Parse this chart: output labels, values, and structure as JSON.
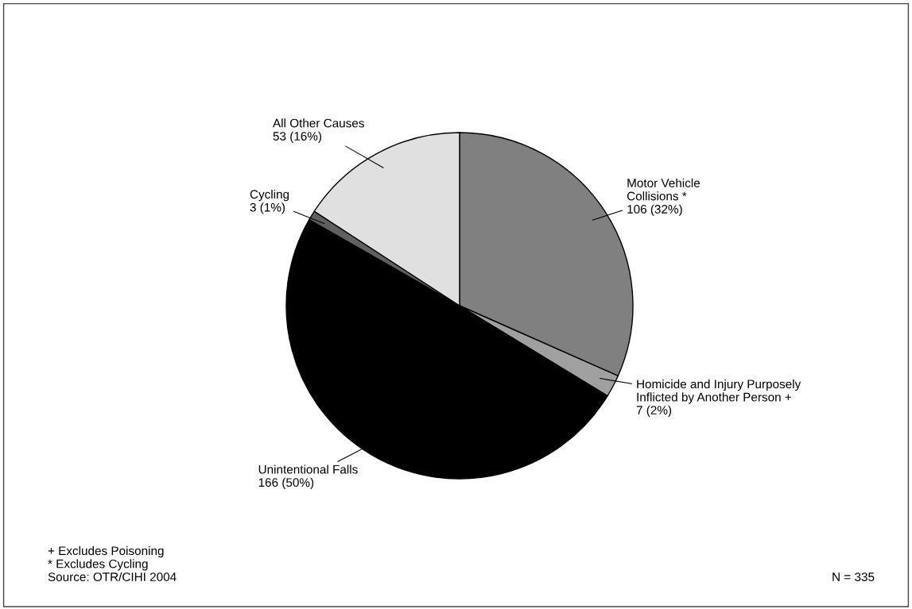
{
  "chart_data": {
    "type": "pie",
    "categories": [
      "Motor Vehicle\nCollisions *",
      "Homicide and Injury Purposely\nInflicted by Another Person +",
      "Unintentional Falls",
      "Cycling",
      "All Other Causes"
    ],
    "values": [
      106,
      7,
      166,
      3,
      53
    ],
    "value_labels": [
      "106 (32%)",
      "7 (2%)",
      "166 (50%)",
      "3 (1%)",
      "53 (16%)"
    ],
    "colors": [
      "#808080",
      "#a0a0a0",
      "#000000",
      "#606060",
      "#e0e0e0"
    ],
    "annotations": [
      "+ Excludes Poisoning\n* Excludes Cycling\nSource: OTR/CIHI 2004",
      "N = 335"
    ]
  }
}
